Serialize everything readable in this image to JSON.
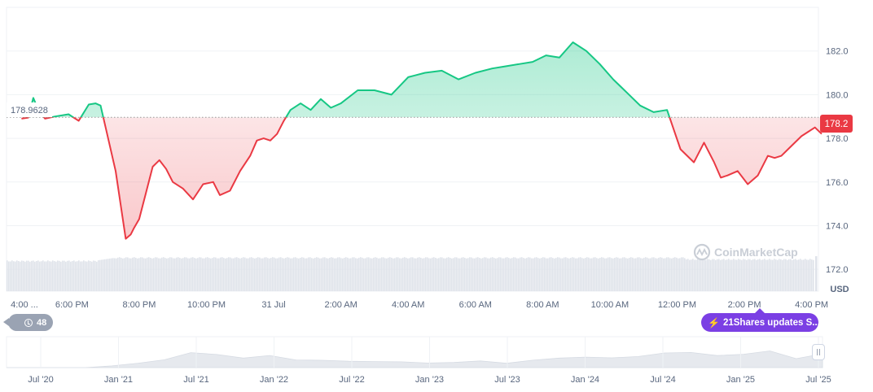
{
  "chart_data": {
    "type": "line",
    "currency": "USD",
    "baseline": 178.9628,
    "current_price": 178.2,
    "ylim": [
      171,
      184
    ],
    "y_ticks": [
      172.0,
      174.0,
      176.0,
      178.0,
      180.0,
      182.0
    ],
    "y_tick_labels": [
      "172.0",
      "174.0",
      "176.0",
      "178.0",
      "180.0",
      "182.0"
    ],
    "baseline_label": "178.9628",
    "current_price_label": "178.2",
    "x_labels": [
      "4:00 ...",
      "6:00 PM",
      "8:00 PM",
      "10:00 PM",
      "31 Jul",
      "2:00 AM",
      "4:00 AM",
      "6:00 AM",
      "8:00 AM",
      "10:00 AM",
      "12:00 PM",
      "2:00 PM",
      "4:00 PM"
    ],
    "x_tick_hours": [
      -0.35,
      1.5,
      3.5,
      5.5,
      7.5,
      9.5,
      11.5,
      13.5,
      15.5,
      17.5,
      19.5,
      21.5,
      23.5
    ],
    "series": [
      {
        "x_hours": [
          0,
          0.2,
          0.35,
          0.5,
          0.7,
          1.0,
          1.4,
          1.7,
          2.0,
          2.2,
          2.35,
          2.5,
          2.8,
          3.1,
          3.25,
          3.35,
          3.5,
          3.7,
          3.9,
          4.1,
          4.3,
          4.5,
          4.8,
          5.1,
          5.4,
          5.7,
          5.9,
          6.2,
          6.5,
          6.8,
          7.0,
          7.2,
          7.4,
          7.6,
          7.8,
          8.0,
          8.3,
          8.6,
          8.9,
          9.2,
          9.5,
          10.0,
          10.5,
          11.0,
          11.5,
          12.0,
          12.5,
          13.0,
          13.5,
          14.0,
          14.4,
          14.8,
          15.2,
          15.6,
          16.0,
          16.4,
          16.8,
          17.2,
          17.6,
          18.0,
          18.4,
          18.8,
          19.2,
          19.6,
          20.0,
          20.3,
          20.6,
          20.8,
          21.0,
          21.3,
          21.6,
          21.9,
          22.2,
          22.4,
          22.6,
          22.8,
          23.0,
          23.2,
          23.4,
          23.6,
          23.8
        ],
        "values": [
          178.9,
          178.95,
          179.85,
          179.3,
          178.9,
          179.0,
          179.1,
          178.8,
          179.55,
          179.6,
          179.5,
          178.5,
          176.5,
          173.4,
          173.6,
          173.9,
          174.3,
          175.5,
          176.7,
          177.0,
          176.6,
          176.0,
          175.7,
          175.2,
          175.9,
          176.0,
          175.4,
          175.6,
          176.5,
          177.2,
          177.9,
          178.0,
          177.9,
          178.2,
          178.8,
          179.3,
          179.6,
          179.3,
          179.8,
          179.4,
          179.6,
          180.2,
          180.2,
          180.0,
          180.8,
          181.0,
          181.1,
          180.7,
          181.0,
          181.2,
          181.3,
          181.4,
          181.5,
          181.8,
          181.7,
          182.4,
          182.0,
          181.4,
          180.7,
          180.1,
          179.5,
          179.2,
          179.3,
          177.5,
          176.9,
          177.8,
          176.9,
          176.2,
          176.3,
          176.5,
          175.9,
          176.3,
          177.2,
          177.1,
          177.2,
          177.5,
          177.8,
          178.1,
          178.3,
          178.5,
          178.2
        ],
        "up_color": "#16c784",
        "down_color": "#ea3943"
      }
    ],
    "overview": {
      "x_labels": [
        "Jul '20",
        "Jan '21",
        "Jul '21",
        "Jan '22",
        "Jul '22",
        "Jan '23",
        "Jul '23",
        "Jan '24",
        "Jul '24",
        "Jan '25",
        "Jul '25"
      ],
      "values": [
        0,
        0,
        0,
        0,
        0.02,
        0.1,
        0.25,
        0.55,
        0.45,
        0.35,
        0.4,
        0.3,
        0.2,
        0.25,
        0.15,
        0.2,
        0.1,
        0.15,
        0.2,
        0.1,
        0.25,
        0.3,
        0.4,
        0.3,
        0.45,
        0.5,
        0.6,
        0.4,
        0.5,
        0.6,
        0.3,
        0.5
      ]
    }
  },
  "watermark": "CoinMarketCap",
  "currency_label": "USD",
  "hover_badge": {
    "icon": "clock-icon",
    "count": "48"
  },
  "news_badge": {
    "icon": "bolt-icon",
    "text": "21Shares updates S..."
  }
}
